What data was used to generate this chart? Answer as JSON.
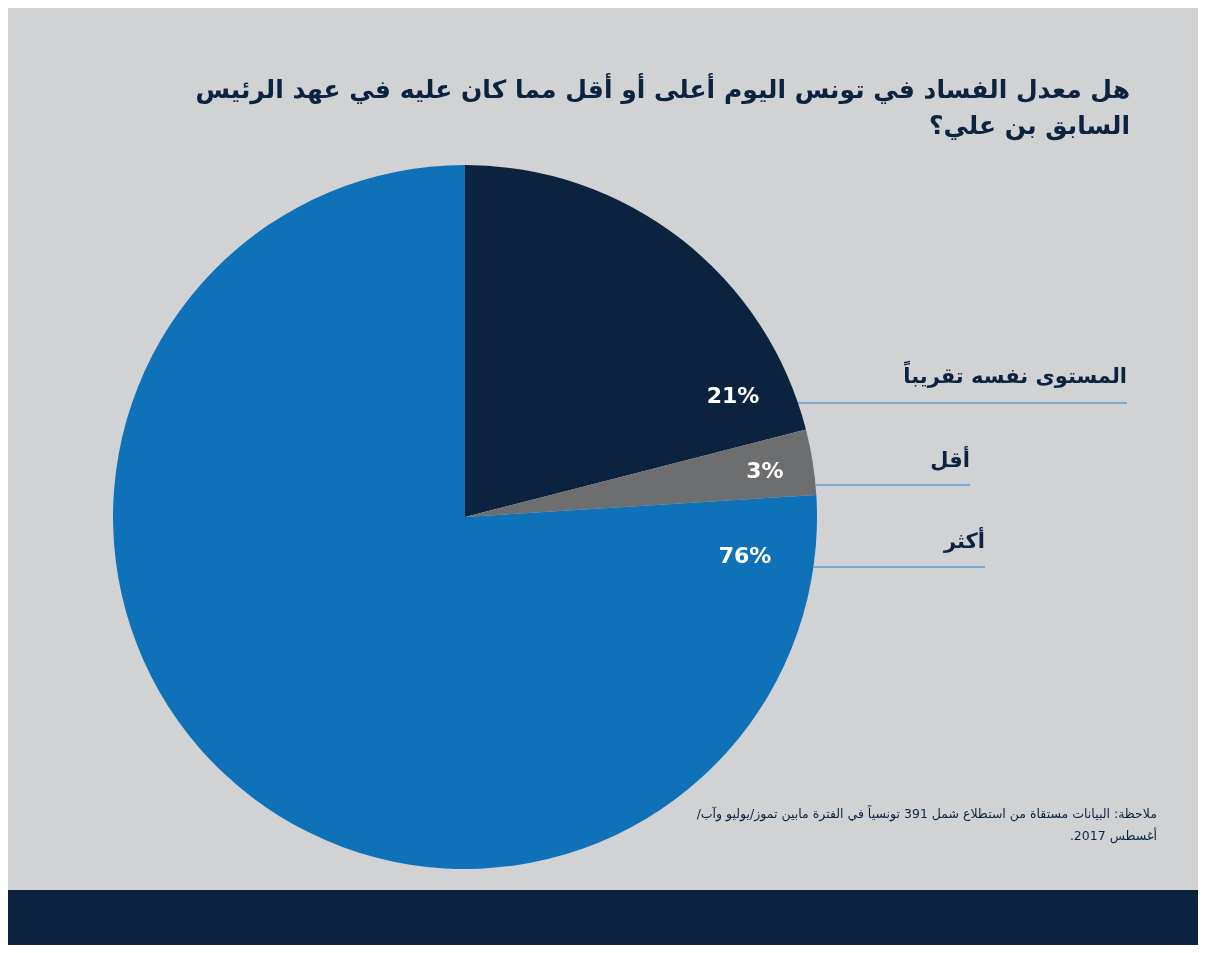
{
  "chart_data": {
    "type": "pie",
    "title": "هل معدل الفساد في تونس اليوم أعلى أو أقل مما كان عليه في عهد الرئيس السابق بن علي؟",
    "categories": [
      "المستوى نفسه تقريباً",
      "أقل",
      "أكثر"
    ],
    "values": [
      21,
      3,
      76
    ],
    "colors": [
      "#0c2340",
      "#6d6e70",
      "#0f72b9"
    ],
    "value_labels": [
      "21%",
      "3%",
      "76%"
    ],
    "annotations": [
      "ملاحظة: البيانات مستقاة من استطلاع شمل 391 تونسياً في الفترة مابين تموز/يوليو وآب/أغسطس 2017."
    ]
  }
}
